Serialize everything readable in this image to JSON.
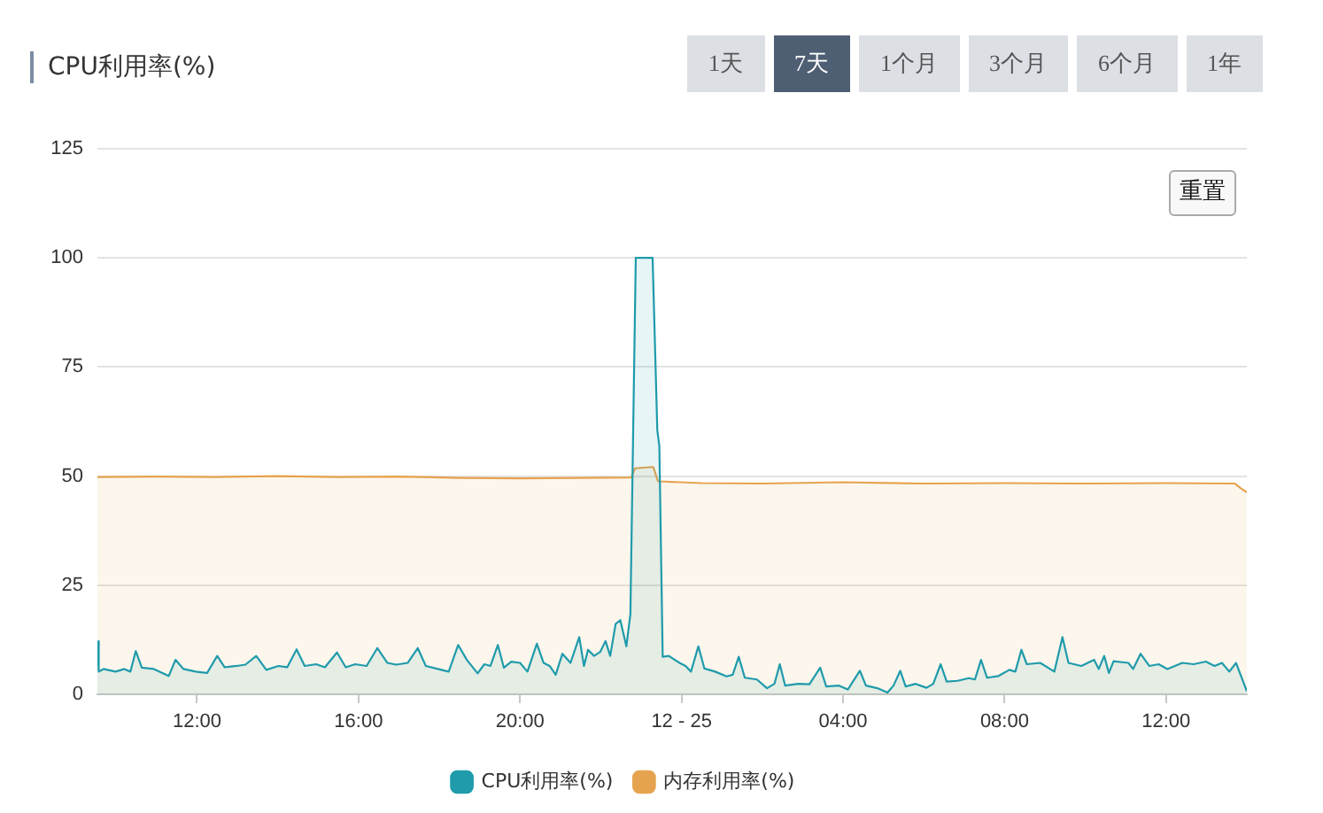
{
  "chart_data": {
    "type": "area",
    "title": "CPU利用率(%)",
    "annotations": [
      "1天",
      "7天",
      "1个月",
      "3个月",
      "6个月",
      "1年",
      "重置"
    ],
    "xlim": [
      "--12-24T09:32",
      "--12-25T14:00"
    ],
    "xticks": [
      {
        "value": "--12-24T12:00",
        "label": "12:00"
      },
      {
        "value": "--12-24T16:00",
        "label": "16:00"
      },
      {
        "value": "--12-24T20:00",
        "label": "20:00"
      },
      {
        "value": "--12-25T00:00",
        "label": "12 - 25"
      },
      {
        "value": "--12-25T04:00",
        "label": "04:00"
      },
      {
        "value": "--12-25T08:00",
        "label": "08:00"
      },
      {
        "value": "--12-25T12:00",
        "label": "12:00"
      }
    ],
    "ylim": [
      0,
      125
    ],
    "yticks": [
      0,
      25,
      50,
      75,
      100,
      125
    ],
    "grid": "y",
    "legend": "bottom",
    "marker": "none",
    "series": [
      {
        "name": "CPU利用率(%)",
        "color": "#1f9bab",
        "x": [
          "--12-24T09:32",
          "--12-24T09:34",
          "--12-24T09:41",
          "--12-24T09:59",
          "--12-24T10:12",
          "--12-24T10:21",
          "--12-24T10:29",
          "--12-24T10:38",
          "--12-24T10:56",
          "--12-24T11:18",
          "--12-24T11:28",
          "--12-24T11:40",
          "--12-24T11:58",
          "--12-24T12:15",
          "--12-24T12:30",
          "--12-24T12:41",
          "--12-24T12:59",
          "--12-24T13:12",
          "--12-24T13:28",
          "--12-24T13:43",
          "--12-24T14:01",
          "--12-24T14:14",
          "--12-24T14:28",
          "--12-24T14:40",
          "--12-24T14:57",
          "--12-24T15:10",
          "--12-24T15:28",
          "--12-24T15:41",
          "--12-24T15:55",
          "--12-24T16:12",
          "--12-24T16:28",
          "--12-24T16:43",
          "--12-24T16:56",
          "--12-24T17:13",
          "--12-24T17:28",
          "--12-24T17:40",
          "--12-24T17:58",
          "--12-24T18:14",
          "--12-24T18:28",
          "--12-24T18:41",
          "--12-24T18:57",
          "--12-24T19:07",
          "--12-24T19:16",
          "--12-24T19:27",
          "--12-24T19:36",
          "--12-24T19:47",
          "--12-24T20:00",
          "--12-24T20:11",
          "--12-24T20:25",
          "--12-24T20:35",
          "--12-24T20:44",
          "--12-24T20:53",
          "--12-24T21:03",
          "--12-24T21:15",
          "--12-24T21:28",
          "--12-24T21:35",
          "--12-24T21:41",
          "--12-24T21:50",
          "--12-24T21:59",
          "--12-24T22:07",
          "--12-24T22:14",
          "--12-24T22:22",
          "--12-24T22:29",
          "--12-24T22:38",
          "--12-24T22:44",
          "--12-24T22:52",
          "--12-24T23:17",
          "--12-24T23:24",
          "--12-24T23:27",
          "--12-24T23:32",
          "--12-24T23:41",
          "--12-24T23:57",
          "--12-25T00:06",
          "--12-25T00:14",
          "--12-25T00:25",
          "--12-25T00:34",
          "--12-25T00:50",
          "--12-25T01:07",
          "--12-25T01:16",
          "--12-25T01:25",
          "--12-25T01:34",
          "--12-25T01:52",
          "--12-25T02:07",
          "--12-25T02:18",
          "--12-25T02:26",
          "--12-25T02:34",
          "--12-25T02:53",
          "--12-25T03:10",
          "--12-25T03:26",
          "--12-25T03:35",
          "--12-25T03:54",
          "--12-25T04:07",
          "--12-25T04:25",
          "--12-25T04:34",
          "--12-25T04:51",
          "--12-25T05:06",
          "--12-25T05:15",
          "--12-25T05:25",
          "--12-25T05:33",
          "--12-25T05:48",
          "--12-25T06:04",
          "--12-25T06:14",
          "--12-25T06:25",
          "--12-25T06:34",
          "--12-25T06:50",
          "--12-25T07:07",
          "--12-25T07:16",
          "--12-25T07:25",
          "--12-25T07:34",
          "--12-25T07:51",
          "--12-25T08:07",
          "--12-25T08:16",
          "--12-25T08:25",
          "--12-25T08:33",
          "--12-25T08:53",
          "--12-25T09:14",
          "--12-25T09:26",
          "--12-25T09:35",
          "--12-25T09:54",
          "--12-25T10:13",
          "--12-25T10:20",
          "--12-25T10:28",
          "--12-25T10:35",
          "--12-25T10:42",
          "--12-25T11:04",
          "--12-25T11:11",
          "--12-25T11:22",
          "--12-25T11:35",
          "--12-25T11:49",
          "--12-25T12:02",
          "--12-25T12:24",
          "--12-25T12:41",
          "--12-25T12:59",
          "--12-25T13:12",
          "--12-25T13:23",
          "--12-25T13:34",
          "--12-25T13:44",
          "--12-25T14:00"
        ],
        "values": [
          12.2,
          5.2,
          5.8,
          5.2,
          5.8,
          5.2,
          9.9,
          6.1,
          5.8,
          4.2,
          7.9,
          5.8,
          5.2,
          4.9,
          8.8,
          6.2,
          6.5,
          6.8,
          8.8,
          5.6,
          6.5,
          6.2,
          10.3,
          6.5,
          6.9,
          6.2,
          9.6,
          6.2,
          6.9,
          6.5,
          10.6,
          7.2,
          6.8,
          7.2,
          10.6,
          6.5,
          5.8,
          5.2,
          11.3,
          7.9,
          4.8,
          6.9,
          6.5,
          11.3,
          6.1,
          7.5,
          7.2,
          5.2,
          11.6,
          7.2,
          6.5,
          4.5,
          9.3,
          7.2,
          13.1,
          6.5,
          10.2,
          8.8,
          9.7,
          12.2,
          8.8,
          16.1,
          17,
          11,
          18.4,
          100,
          100,
          60.5,
          56.9,
          8.6,
          8.8,
          7.2,
          6.5,
          5.2,
          11,
          5.9,
          5.2,
          4.1,
          4.5,
          8.6,
          3.8,
          3.4,
          1.4,
          2.4,
          6.9,
          2,
          2.4,
          2.3,
          6.1,
          1.8,
          2,
          1.1,
          5.4,
          2,
          1.4,
          0.4,
          2,
          5.4,
          1.8,
          2.4,
          1.5,
          2.4,
          6.9,
          2.9,
          3.1,
          3.7,
          3.4,
          7.9,
          3.8,
          4.2,
          5.6,
          5.2,
          10.2,
          6.9,
          7.2,
          5.2,
          13.1,
          7.2,
          6.5,
          7.9,
          5.8,
          8.8,
          4.9,
          7.6,
          7.2,
          5.8,
          9.3,
          6.5,
          6.9,
          5.8,
          7.2,
          6.9,
          7.5,
          6.5,
          7.2,
          5.2,
          7.2,
          0.7
        ]
      },
      {
        "name": "内存利用率(%)",
        "color": "#e6a34f",
        "x": [
          "--12-24T09:32",
          "--12-24T11:00",
          "--12-24T12:30",
          "--12-24T14:00",
          "--12-24T15:30",
          "--12-24T17:00",
          "--12-24T18:30",
          "--12-24T20:00",
          "--12-24T21:30",
          "--12-24T22:45",
          "--12-24T22:51",
          "--12-24T23:18",
          "--12-24T23:25",
          "--12-25T00:30",
          "--12-25T02:00",
          "--12-25T04:00",
          "--12-25T06:00",
          "--12-25T08:00",
          "--12-25T10:00",
          "--12-25T12:00",
          "--12-25T13:42",
          "--12-25T13:51",
          "--12-25T14:00"
        ],
        "values": [
          49.8,
          49.9,
          49.8,
          50,
          49.8,
          49.9,
          49.6,
          49.5,
          49.6,
          49.7,
          51.8,
          52.1,
          48.8,
          48.4,
          48.3,
          48.6,
          48.3,
          48.4,
          48.3,
          48.4,
          48.3,
          47.2,
          46.3
        ]
      }
    ]
  }
}
